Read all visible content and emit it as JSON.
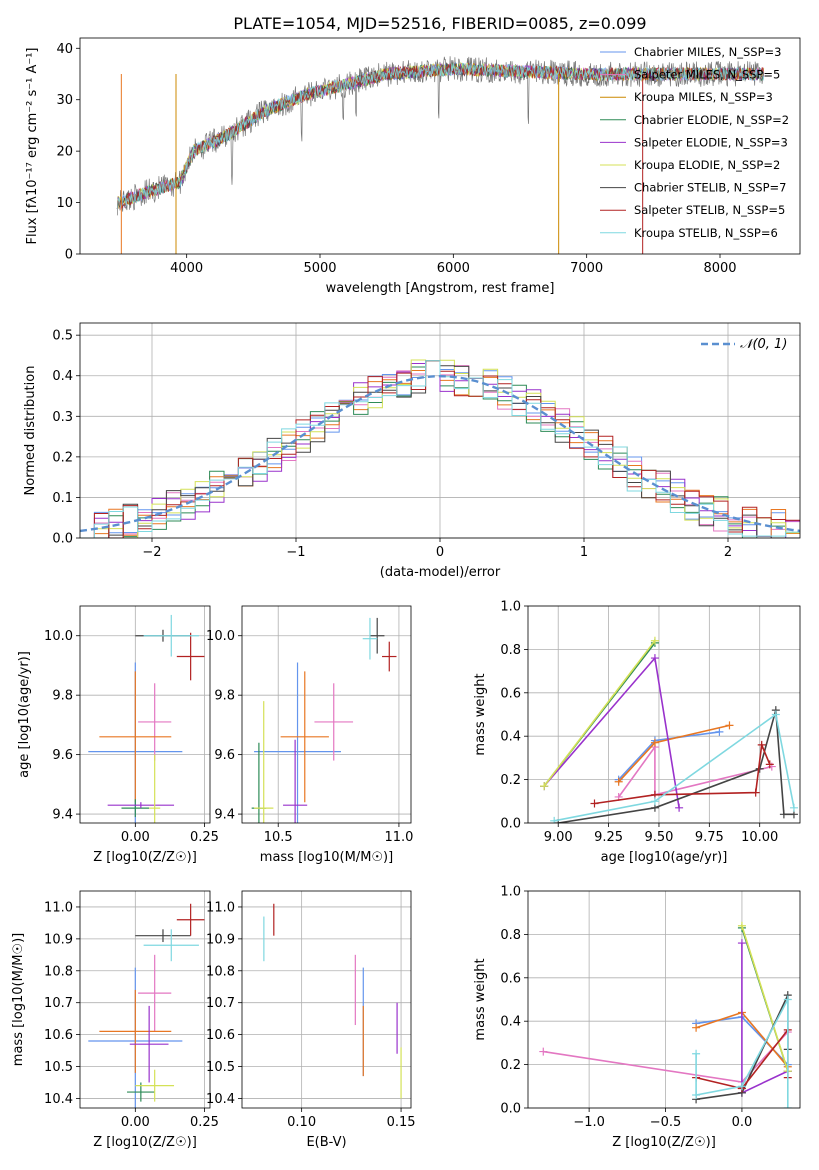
{
  "chart_data": [
    {
      "id": "spectrum",
      "type": "line",
      "title": "PLATE=1054, MJD=52516, FIBERID=0085, z=0.099",
      "xlabel": "wavelength [Angstrom, rest frame]",
      "ylabel": "Flux [fλ10⁻¹⁷ erg cm⁻² s⁻¹ A⁻¹]",
      "xlim": [
        3200,
        8600
      ],
      "ylim": [
        0,
        42
      ],
      "xticks": [
        4000,
        5000,
        6000,
        7000,
        8000
      ],
      "yticks": [
        0,
        10,
        20,
        30,
        40
      ],
      "grid": false,
      "legend_position": "right",
      "continuum_knots": {
        "x": [
          3500,
          3700,
          3950,
          4050,
          4300,
          4600,
          4900,
          5200,
          5500,
          6000,
          6500,
          7000,
          7500,
          8000,
          8300
        ],
        "y": [
          10,
          12,
          14,
          20,
          23,
          28,
          31,
          33,
          35,
          36,
          35.5,
          35,
          35,
          35,
          35
        ]
      },
      "series": [
        {
          "name": "Chabrier MILES, N_SSP=3",
          "color": "#6495ed"
        },
        {
          "name": "Salpeter MILES, N_SSP=5",
          "color": "#e377c2"
        },
        {
          "name": "Kroupa MILES, N_SSP=3",
          "color": "#cc8800"
        },
        {
          "name": "Chabrier ELODIE, N_SSP=2",
          "color": "#2e8b57"
        },
        {
          "name": "Salpeter ELODIE, N_SSP=3",
          "color": "#9932cc"
        },
        {
          "name": "Kroupa ELODIE, N_SSP=2",
          "color": "#d4e157"
        },
        {
          "name": "Chabrier STELIB, N_SSP=7",
          "color": "#444444"
        },
        {
          "name": "Salpeter STELIB, N_SSP=5",
          "color": "#b22222"
        },
        {
          "name": "Kroupa STELIB, N_SSP=6",
          "color": "#7fd8e0"
        }
      ],
      "data_trace_color": "#777777"
    },
    {
      "id": "residuals",
      "type": "line",
      "xlabel": "(data-model)/error",
      "ylabel": "Normed distribution",
      "xlim": [
        -2.5,
        2.5
      ],
      "ylim": [
        0,
        0.53
      ],
      "xticks": [
        -2,
        -1,
        0,
        1,
        2
      ],
      "yticks": [
        0.0,
        0.1,
        0.2,
        0.3,
        0.4,
        0.5
      ],
      "grid": true,
      "legend_label": "𝒩(0, 1)",
      "legend_position": "top-right",
      "bin_width": 0.1
    },
    {
      "id": "Z_vs_age",
      "type": "scatter",
      "xlabel": "Z [log10(Z/Z☉)]",
      "ylabel": "age  [log10(age/yr)]",
      "xlim": [
        -0.2,
        0.27
      ],
      "ylim": [
        9.37,
        10.1
      ],
      "xticks": [
        0.0,
        0.25
      ],
      "yticks": [
        9.4,
        9.6,
        9.8,
        10.0
      ],
      "points": [
        {
          "x": 0.0,
          "y": 9.61,
          "xerr": 0.17,
          "yerr": 0.3,
          "color": "#6495ed"
        },
        {
          "x": 0.07,
          "y": 9.71,
          "xerr": 0.06,
          "yerr": 0.13,
          "color": "#e377c2"
        },
        {
          "x": 0.0,
          "y": 9.66,
          "xerr": 0.13,
          "yerr": 0.22,
          "color": "#e87722"
        },
        {
          "x": 0.0,
          "y": 9.42,
          "xerr": 0.05,
          "yerr": 0.03,
          "color": "#2e8b57"
        },
        {
          "x": 0.02,
          "y": 9.43,
          "xerr": 0.12,
          "yerr": 0.01,
          "color": "#9932cc"
        },
        {
          "x": 0.07,
          "y": 9.42,
          "xerr": 0.02,
          "yerr": 0.18,
          "color": "#d4e157"
        },
        {
          "x": 0.1,
          "y": 10.0,
          "xerr": 0.1,
          "yerr": 0.02,
          "color": "#444444"
        },
        {
          "x": 0.2,
          "y": 9.93,
          "xerr": 0.05,
          "yerr": 0.08,
          "color": "#b22222"
        },
        {
          "x": 0.13,
          "y": 10.0,
          "xerr": 0.1,
          "yerr": 0.07,
          "color": "#7fd8e0"
        }
      ]
    },
    {
      "id": "mass_vs_age",
      "type": "scatter",
      "xlabel": "mass [log10(M/M☉)]",
      "ylabel": "",
      "xlim": [
        10.35,
        11.05
      ],
      "ylim": [
        9.37,
        10.1
      ],
      "xticks": [
        10.5,
        11.0
      ],
      "yticks": [
        9.4,
        9.6,
        9.8,
        10.0
      ],
      "points": [
        {
          "x": 10.58,
          "y": 9.61,
          "xerr": 0.18,
          "yerr": 0.3,
          "color": "#6495ed"
        },
        {
          "x": 10.73,
          "y": 9.71,
          "xerr": 0.08,
          "yerr": 0.13,
          "color": "#e377c2"
        },
        {
          "x": 10.61,
          "y": 9.66,
          "xerr": 0.1,
          "yerr": 0.22,
          "color": "#e87722"
        },
        {
          "x": 10.42,
          "y": 9.42,
          "xerr": 0.03,
          "yerr": 0.22,
          "color": "#2e8b57"
        },
        {
          "x": 10.57,
          "y": 9.43,
          "xerr": 0.05,
          "yerr": 0.22,
          "color": "#9932cc"
        },
        {
          "x": 10.44,
          "y": 9.42,
          "xerr": 0.04,
          "yerr": 0.36,
          "color": "#d4e157"
        },
        {
          "x": 10.91,
          "y": 10.0,
          "xerr": 0.03,
          "yerr": 0.06,
          "color": "#444444"
        },
        {
          "x": 10.96,
          "y": 9.93,
          "xerr": 0.03,
          "yerr": 0.05,
          "color": "#b22222"
        },
        {
          "x": 10.88,
          "y": 9.99,
          "xerr": 0.03,
          "yerr": 0.07,
          "color": "#7fd8e0"
        }
      ]
    },
    {
      "id": "age_vs_weight",
      "type": "line",
      "xlabel": "age  [log10(age/yr)]",
      "ylabel": "mass weight",
      "xlim": [
        8.85,
        10.2
      ],
      "ylim": [
        0,
        1.0
      ],
      "xticks": [
        9.0,
        9.25,
        9.5,
        9.75,
        10.0
      ],
      "yticks": [
        0.0,
        0.2,
        0.4,
        0.6,
        0.8,
        1.0
      ],
      "grid": true,
      "series": [
        {
          "color": "#6495ed",
          "x": [
            9.3,
            9.48,
            9.8
          ],
          "y": [
            0.2,
            0.38,
            0.42
          ]
        },
        {
          "color": "#e377c2",
          "x": [
            9.3,
            9.48,
            9.48,
            10.06
          ],
          "y": [
            0.12,
            0.35,
            0.13,
            0.26
          ]
        },
        {
          "color": "#e87722",
          "x": [
            9.3,
            9.48,
            9.85
          ],
          "y": [
            0.19,
            0.37,
            0.45
          ]
        },
        {
          "color": "#2e8b57",
          "x": [
            8.93,
            9.48
          ],
          "y": [
            0.17,
            0.83
          ]
        },
        {
          "color": "#9932cc",
          "x": [
            8.93,
            9.48,
            9.6
          ],
          "y": [
            0.17,
            0.76,
            0.07
          ]
        },
        {
          "color": "#d4e157",
          "x": [
            8.93,
            9.48
          ],
          "y": [
            0.17,
            0.84
          ]
        },
        {
          "color": "#444444",
          "x": [
            9.0,
            9.48,
            10.0,
            10.08,
            10.12,
            10.17
          ],
          "y": [
            0.0,
            0.07,
            0.25,
            0.52,
            0.04,
            0.04
          ]
        },
        {
          "color": "#b22222",
          "x": [
            9.18,
            9.48,
            9.98,
            10.01,
            10.05
          ],
          "y": [
            0.09,
            0.13,
            0.14,
            0.36,
            0.27
          ]
        },
        {
          "color": "#7fd8e0",
          "x": [
            8.98,
            9.48,
            10.08,
            10.17
          ],
          "y": [
            0.01,
            0.1,
            0.5,
            0.07
          ]
        }
      ]
    },
    {
      "id": "Z_vs_mass",
      "type": "scatter",
      "xlabel": "Z [log10(Z/Z☉)]",
      "ylabel": "mass [log10(M/M☉)]",
      "xlim": [
        -0.2,
        0.27
      ],
      "ylim": [
        10.37,
        11.05
      ],
      "xticks": [
        0.0,
        0.25
      ],
      "yticks": [
        10.4,
        10.5,
        10.6,
        10.7,
        10.8,
        10.9,
        11.0
      ],
      "points": [
        {
          "x": 0.0,
          "y": 10.58,
          "xerr": 0.17,
          "yerr": 0.23,
          "color": "#6495ed"
        },
        {
          "x": 0.07,
          "y": 10.73,
          "xerr": 0.06,
          "yerr": 0.12,
          "color": "#e377c2"
        },
        {
          "x": 0.0,
          "y": 10.61,
          "xerr": 0.13,
          "yerr": 0.13,
          "color": "#e87722"
        },
        {
          "x": 0.02,
          "y": 10.42,
          "xerr": 0.05,
          "yerr": 0.03,
          "color": "#2e8b57"
        },
        {
          "x": 0.05,
          "y": 10.57,
          "xerr": 0.07,
          "yerr": 0.12,
          "color": "#9932cc"
        },
        {
          "x": 0.07,
          "y": 10.44,
          "xerr": 0.07,
          "yerr": 0.05,
          "color": "#d4e157"
        },
        {
          "x": 0.1,
          "y": 10.91,
          "xerr": 0.1,
          "yerr": 0.02,
          "color": "#444444"
        },
        {
          "x": 0.2,
          "y": 10.96,
          "xerr": 0.05,
          "yerr": 0.05,
          "color": "#b22222"
        },
        {
          "x": 0.13,
          "y": 10.88,
          "xerr": 0.1,
          "yerr": 0.05,
          "color": "#7fd8e0"
        }
      ]
    },
    {
      "id": "ebv_vs_mass",
      "type": "scatter",
      "xlabel": "E(B-V)",
      "ylabel": "",
      "xlim": [
        0.07,
        0.155
      ],
      "ylim": [
        10.37,
        11.05
      ],
      "xticks": [
        0.1,
        0.15
      ],
      "yticks": [
        10.4,
        10.5,
        10.6,
        10.7,
        10.8,
        10.9,
        11.0
      ],
      "points": [
        {
          "x": 0.131,
          "y": 10.64,
          "yerr": 0.17,
          "color": "#6495ed"
        },
        {
          "x": 0.127,
          "y": 10.74,
          "yerr": 0.11,
          "color": "#e377c2"
        },
        {
          "x": 0.131,
          "y": 10.58,
          "yerr": 0.11,
          "color": "#e87722"
        },
        {
          "x": 0.148,
          "y": 10.62,
          "yerr": 0.08,
          "color": "#9932cc"
        },
        {
          "x": 0.15,
          "y": 10.48,
          "yerr": 0.08,
          "color": "#d4e157"
        },
        {
          "x": 0.081,
          "y": 10.9,
          "yerr": 0.07,
          "color": "#7fd8e0"
        },
        {
          "x": 0.086,
          "y": 10.96,
          "yerr": 0.05,
          "color": "#b22222"
        }
      ]
    },
    {
      "id": "Z_vs_weight",
      "type": "line",
      "xlabel": "Z [log10(Z/Z☉)]",
      "ylabel": "mass weight",
      "xlim": [
        -1.4,
        0.38
      ],
      "ylim": [
        0,
        1.0
      ],
      "xticks": [
        -1.0,
        -0.5,
        0.0
      ],
      "yticks": [
        0.0,
        0.2,
        0.4,
        0.6,
        0.8,
        1.0
      ],
      "grid": true,
      "series": [
        {
          "color": "#6495ed",
          "x": [
            -0.3,
            0.0,
            0.3
          ],
          "y": [
            0.39,
            0.42,
            0.2
          ]
        },
        {
          "color": "#e377c2",
          "x": [
            -1.3,
            0.0,
            0.3
          ],
          "y": [
            0.26,
            0.12,
            0.35
          ]
        },
        {
          "color": "#e87722",
          "x": [
            -0.3,
            0.0,
            0.3
          ],
          "y": [
            0.37,
            0.44,
            0.19
          ]
        },
        {
          "color": "#2e8b57",
          "x": [
            0.0,
            0.3
          ],
          "y": [
            0.83,
            0.17
          ]
        },
        {
          "color": "#9932cc",
          "x": [
            0.0,
            0.0,
            0.3
          ],
          "y": [
            0.76,
            0.07,
            0.17
          ]
        },
        {
          "color": "#d4e157",
          "x": [
            0.0,
            0.3
          ],
          "y": [
            0.84,
            0.17
          ]
        },
        {
          "color": "#444444",
          "x": [
            -0.3,
            0.0,
            0.3,
            0.3
          ],
          "y": [
            0.04,
            0.07,
            0.52,
            0.27
          ]
        },
        {
          "color": "#b22222",
          "x": [
            -0.3,
            0.0,
            0.3,
            0.3
          ],
          "y": [
            0.14,
            0.09,
            0.36,
            0.14
          ]
        },
        {
          "color": "#7fd8e0",
          "x": [
            -0.3,
            -0.3,
            0.0,
            0.3,
            0.3
          ],
          "y": [
            0.25,
            0.06,
            0.1,
            0.5,
            0.0
          ]
        }
      ]
    }
  ]
}
